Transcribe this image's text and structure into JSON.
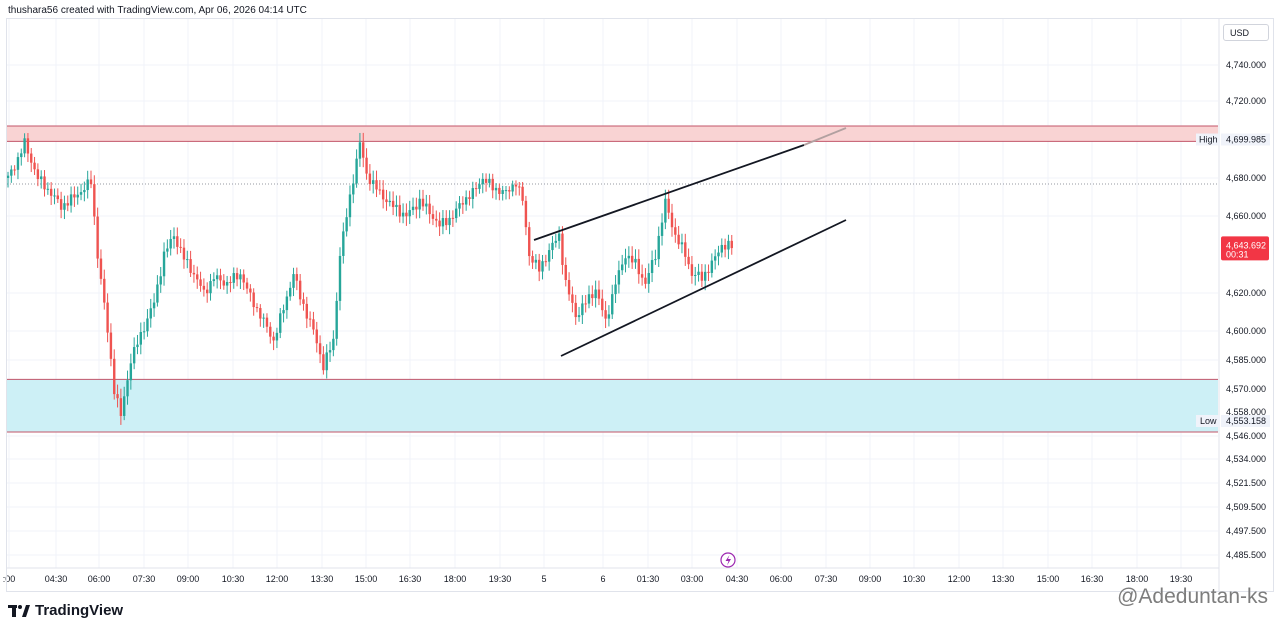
{
  "header": {
    "caption": "thushara56 created with TradingView.com, Apr 06, 2026 04:14 UTC"
  },
  "price_axis": {
    "currency": "USD"
  },
  "footer": {
    "brand": "TradingView",
    "watermark": "@Adeduntan-ks"
  },
  "colors": {
    "up": "#26a69a",
    "down": "#ef5350",
    "resistance_zone": "#f9d3d3",
    "support_zone": "#cdf0f6",
    "last_price": "#f23645",
    "pattern_line": "#131722"
  },
  "icons": {
    "event_marker": "lightning-icon",
    "logo": "tradingview-logo-icon"
  },
  "chart_data": {
    "type": "candlestick",
    "title": "",
    "yaxis": {
      "ticks": [
        4740,
        4720,
        4680,
        4660,
        4620,
        4600,
        4585,
        4570,
        4558,
        4546,
        4534,
        4521.5,
        4509.5,
        4497.5,
        4485.5
      ],
      "tick_labels": [
        "4,740.000",
        "4,720.000",
        "4,680.000",
        "4,660.000",
        "4,620.000",
        "4,600.000",
        "4,585.000",
        "4,570.000",
        "4,558.000",
        "4,546.000",
        "4,534.000",
        "4,521.500",
        "4,509.500",
        "4,497.500",
        "4,485.500"
      ],
      "scale": "nonlinear-display"
    },
    "xaxis": {
      "tick_labels": [
        ":00",
        "04:30",
        "06:00",
        "07:30",
        "09:00",
        "10:30",
        "12:00",
        "13:30",
        "15:00",
        "16:30",
        "18:00",
        "19:30",
        "5",
        "6",
        "01:30",
        "03:00",
        "04:30",
        "06:00",
        "07:30",
        "09:00",
        "10:30",
        "12:00",
        "13:30",
        "15:00",
        "16:30",
        "18:00",
        "19:30"
      ]
    },
    "high": {
      "label": "High",
      "value": "4,699.985"
    },
    "low": {
      "label": "Low",
      "value": "4,553.158"
    },
    "last_price": {
      "value": "4,643.692",
      "countdown": "00:31"
    },
    "zones": [
      {
        "name": "resistance",
        "from": 4699,
        "to": 4707
      },
      {
        "name": "support",
        "from": 4548,
        "to": 4575
      }
    ],
    "pattern": "rising wedge",
    "price_path": [
      [
        0,
        4680
      ],
      [
        3,
        4690
      ],
      [
        5,
        4698
      ],
      [
        9,
        4680
      ],
      [
        13,
        4672
      ],
      [
        16,
        4665
      ],
      [
        20,
        4670
      ],
      [
        25,
        4678
      ],
      [
        27,
        4640
      ],
      [
        30,
        4600
      ],
      [
        32,
        4570
      ],
      [
        34,
        4556
      ],
      [
        37,
        4585
      ],
      [
        40,
        4598
      ],
      [
        44,
        4615
      ],
      [
        47,
        4640
      ],
      [
        50,
        4650
      ],
      [
        53,
        4638
      ],
      [
        56,
        4630
      ],
      [
        59,
        4620
      ],
      [
        62,
        4628
      ],
      [
        66,
        4625
      ],
      [
        70,
        4630
      ],
      [
        73,
        4618
      ],
      [
        77,
        4605
      ],
      [
        80,
        4595
      ],
      [
        83,
        4612
      ],
      [
        86,
        4630
      ],
      [
        88,
        4618
      ],
      [
        92,
        4600
      ],
      [
        95,
        4582
      ],
      [
        98,
        4595
      ],
      [
        100,
        4640
      ],
      [
        102,
        4660
      ],
      [
        104,
        4680
      ],
      [
        106,
        4698
      ],
      [
        108,
        4682
      ],
      [
        112,
        4672
      ],
      [
        116,
        4665
      ],
      [
        120,
        4660
      ],
      [
        124,
        4668
      ],
      [
        127,
        4662
      ],
      [
        130,
        4655
      ],
      [
        134,
        4660
      ],
      [
        137,
        4668
      ],
      [
        140,
        4672
      ],
      [
        143,
        4680
      ],
      [
        146,
        4675
      ],
      [
        150,
        4672
      ],
      [
        153,
        4678
      ],
      [
        155,
        4668
      ],
      [
        157,
        4640
      ],
      [
        160,
        4632
      ],
      [
        163,
        4642
      ],
      [
        166,
        4650
      ],
      [
        168,
        4625
      ],
      [
        171,
        4608
      ],
      [
        174,
        4615
      ],
      [
        177,
        4622
      ],
      [
        180,
        4605
      ],
      [
        183,
        4625
      ],
      [
        186,
        4640
      ],
      [
        189,
        4635
      ],
      [
        192,
        4625
      ],
      [
        195,
        4640
      ],
      [
        198,
        4667
      ],
      [
        201,
        4650
      ],
      [
        204,
        4640
      ],
      [
        206,
        4630
      ],
      [
        209,
        4628
      ],
      [
        212,
        4635
      ],
      [
        215,
        4645
      ],
      [
        218,
        4644
      ]
    ]
  }
}
